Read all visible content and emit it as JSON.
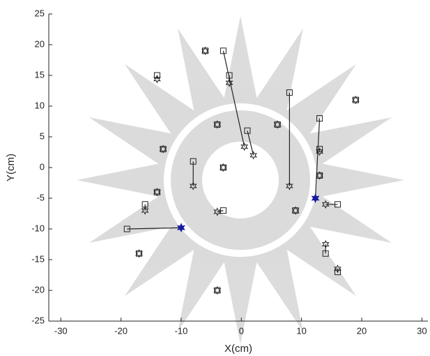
{
  "chart_data": {
    "type": "scatter",
    "xlabel": "X(cm)",
    "ylabel": "Y(cm)",
    "xlim": [
      -32,
      31
    ],
    "ylim": [
      -25,
      25
    ],
    "xticks": [
      -30,
      -20,
      -10,
      0,
      10,
      20,
      30
    ],
    "yticks": [
      -25,
      -20,
      -15,
      -10,
      -5,
      0,
      5,
      10,
      15,
      20,
      25
    ],
    "series": [
      {
        "marker": "square",
        "color": "#222222",
        "x": [
          -6,
          -14,
          -3,
          -2,
          1,
          -4,
          -13,
          -3,
          6,
          -14,
          9,
          -17,
          -4,
          19,
          8,
          13,
          13,
          13,
          -8,
          -16,
          -3,
          -19,
          16,
          14,
          16
        ],
        "y": [
          19,
          15,
          19,
          15,
          6,
          7,
          3,
          0,
          7,
          -4,
          -7,
          -14,
          -20,
          11,
          12.2,
          8,
          3,
          -1.3,
          1,
          -6,
          -7,
          -10,
          -6,
          -14,
          -17
        ]
      },
      {
        "marker": "star",
        "colors": [
          "#222222",
          "#222222",
          "#222222",
          "#222222",
          "#222222",
          "#222222",
          "#222222",
          "#222222",
          "#222222",
          "#222222",
          "#222222",
          "#222222",
          "#222222",
          "#222222",
          "#222222",
          "#1a1aa0",
          "#222222",
          "#222222",
          "#222222",
          "#222222",
          "#222222",
          "#1a1aa0",
          "#222222",
          "#222222",
          "#222222"
        ],
        "x": [
          -6,
          -14,
          0.5,
          -2,
          2,
          -4,
          -13,
          -3,
          6,
          -14,
          9,
          -17,
          -4,
          19,
          8,
          12.3,
          13,
          13,
          -8,
          -16,
          -4,
          -10,
          14,
          14,
          16
        ],
        "y": [
          19,
          14.4,
          3.4,
          13.8,
          2,
          7,
          3,
          0,
          7,
          -4,
          -7,
          -14,
          -20,
          11,
          -3,
          -5,
          2.6,
          -1.3,
          -3,
          -7,
          -7.2,
          -9.8,
          -6,
          -12.5,
          -16.5
        ]
      }
    ]
  }
}
